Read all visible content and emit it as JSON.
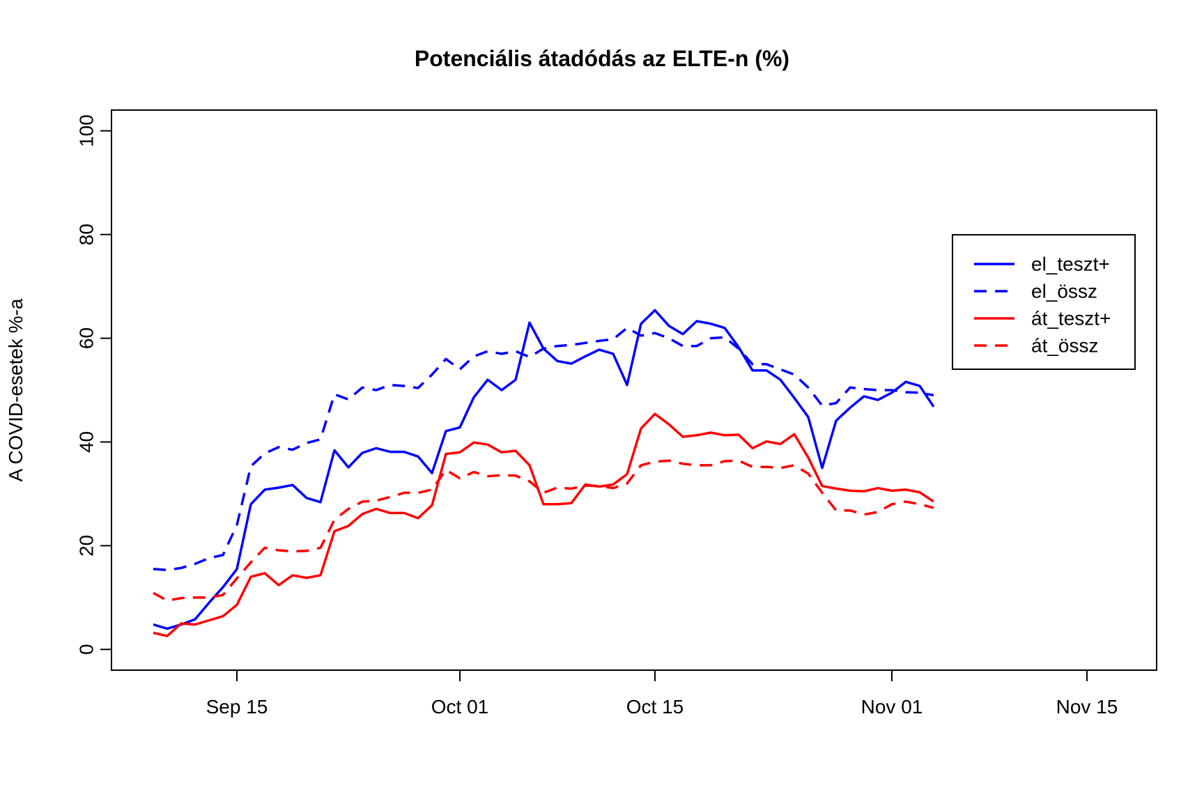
{
  "chart_data": {
    "type": "line",
    "title": "Potenciális átadódás az ELTE-n (%)",
    "xlabel": "",
    "ylabel": "A COVID-esetek %-a",
    "x_axis": {
      "type": "date",
      "lim": [
        "2020-09-06",
        "2020-11-20"
      ],
      "ticks": [
        {
          "date": "2020-09-15",
          "label": "Sep 15"
        },
        {
          "date": "2020-10-01",
          "label": "Oct 01"
        },
        {
          "date": "2020-10-15",
          "label": "Oct 15"
        },
        {
          "date": "2020-11-01",
          "label": "Nov 01"
        },
        {
          "date": "2020-11-15",
          "label": "Nov 15"
        }
      ]
    },
    "y_axis": {
      "lim": [
        -4,
        104
      ],
      "ticks": [
        0,
        20,
        40,
        60,
        80,
        100
      ],
      "tick_labels": [
        "0",
        "20",
        "40",
        "60",
        "80",
        "100"
      ]
    },
    "grid": false,
    "legend": {
      "placement": "right",
      "box": true
    },
    "x": [
      "2020-09-09",
      "2020-09-10",
      "2020-09-11",
      "2020-09-12",
      "2020-09-13",
      "2020-09-14",
      "2020-09-15",
      "2020-09-16",
      "2020-09-17",
      "2020-09-18",
      "2020-09-19",
      "2020-09-20",
      "2020-09-21",
      "2020-09-22",
      "2020-09-23",
      "2020-09-24",
      "2020-09-25",
      "2020-09-26",
      "2020-09-27",
      "2020-09-28",
      "2020-09-29",
      "2020-09-30",
      "2020-10-01",
      "2020-10-02",
      "2020-10-03",
      "2020-10-04",
      "2020-10-05",
      "2020-10-06",
      "2020-10-07",
      "2020-10-08",
      "2020-10-09",
      "2020-10-10",
      "2020-10-11",
      "2020-10-12",
      "2020-10-13",
      "2020-10-14",
      "2020-10-15",
      "2020-10-16",
      "2020-10-17",
      "2020-10-18",
      "2020-10-19",
      "2020-10-20",
      "2020-10-21",
      "2020-10-22",
      "2020-10-23",
      "2020-10-24",
      "2020-10-25",
      "2020-10-26",
      "2020-10-27",
      "2020-10-28",
      "2020-10-29",
      "2020-10-30",
      "2020-10-31",
      "2020-11-01",
      "2020-11-02",
      "2020-11-03",
      "2020-11-04"
    ],
    "series": [
      {
        "name": "el_teszt+",
        "color": "#0000ff",
        "dash": "solid",
        "values": [
          4.8,
          4.0,
          4.8,
          5.8,
          9.0,
          12.0,
          15.5,
          28.0,
          30.8,
          31.2,
          31.7,
          29.2,
          28.4,
          38.4,
          35.1,
          37.9,
          38.8,
          38.1,
          38.1,
          37.2,
          34.0,
          42.1,
          42.8,
          48.6,
          52.0,
          50.0,
          52.0,
          63.0,
          58.0,
          55.6,
          55.1,
          56.5,
          57.8,
          57.0,
          51.0,
          62.8,
          65.4,
          62.4,
          60.8,
          63.3,
          62.8,
          62.0,
          58.3,
          53.8,
          53.8,
          52.0,
          48.5,
          44.8,
          35.0,
          44.1,
          46.6,
          48.8,
          48.1,
          49.5,
          51.6,
          50.8,
          46.8
        ]
      },
      {
        "name": "el_össz",
        "color": "#0000ff",
        "dash": "dashed",
        "values": [
          15.5,
          15.3,
          15.7,
          16.5,
          17.6,
          18.2,
          24.0,
          35.3,
          37.8,
          39.0,
          38.5,
          39.8,
          40.5,
          49.2,
          48.2,
          50.5,
          50.0,
          51.0,
          50.8,
          50.4,
          53.0,
          56.0,
          54.0,
          56.5,
          57.5,
          57.0,
          57.5,
          56.4,
          58.0,
          58.5,
          58.7,
          59.1,
          59.5,
          59.8,
          62.0,
          60.5,
          61.0,
          60.0,
          58.5,
          58.5,
          60.0,
          60.2,
          58.0,
          55.0,
          55.0,
          54.0,
          53.0,
          50.5,
          47.0,
          47.5,
          50.5,
          50.2,
          50.0,
          50.0,
          49.6,
          49.5,
          49.0
        ]
      },
      {
        "name": "át_teszt+",
        "color": "#ff0000",
        "dash": "solid",
        "values": [
          3.2,
          2.6,
          5.0,
          4.8,
          5.6,
          6.4,
          8.6,
          14.0,
          14.7,
          12.4,
          14.3,
          13.8,
          14.3,
          22.8,
          23.8,
          26.1,
          27.1,
          26.3,
          26.3,
          25.3,
          27.8,
          37.7,
          38.0,
          39.9,
          39.5,
          38.0,
          38.3,
          35.5,
          28.0,
          28.0,
          28.2,
          31.8,
          31.4,
          31.8,
          33.8,
          42.6,
          45.4,
          43.4,
          41.0,
          41.3,
          41.8,
          41.3,
          41.4,
          38.8,
          40.1,
          39.6,
          41.5,
          37.0,
          31.5,
          31.0,
          30.6,
          30.5,
          31.1,
          30.6,
          30.8,
          30.3,
          28.5
        ]
      },
      {
        "name": "át_össz",
        "color": "#ff0000",
        "dash": "dashed",
        "values": [
          10.9,
          9.4,
          9.9,
          10.0,
          10.0,
          10.5,
          13.7,
          16.8,
          19.6,
          19.1,
          18.9,
          19.0,
          19.6,
          25.0,
          27.1,
          28.5,
          28.7,
          29.4,
          30.2,
          30.2,
          30.8,
          34.6,
          33.0,
          34.2,
          33.4,
          33.6,
          33.5,
          32.4,
          30.2,
          31.2,
          31.0,
          31.6,
          31.5,
          31.1,
          32.0,
          35.5,
          36.2,
          36.4,
          35.8,
          35.5,
          35.5,
          36.3,
          36.4,
          35.2,
          35.2,
          35.0,
          35.5,
          33.9,
          30.2,
          26.8,
          26.8,
          26.0,
          26.5,
          28.0,
          28.5,
          28.0,
          27.3
        ]
      }
    ]
  }
}
